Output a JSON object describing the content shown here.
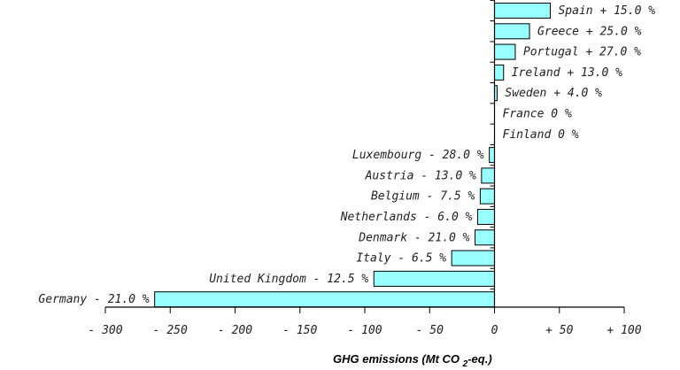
{
  "chart_data": {
    "type": "bar",
    "orientation": "horizontal",
    "xlabel": "GHG emissions (Mt CO 2-eq.)",
    "xlabel_parts": [
      "GHG emissions (Mt CO ",
      "2",
      "-eq.)"
    ],
    "xlim": [
      -300,
      100
    ],
    "x_ticks": [
      -300,
      -250,
      -200,
      -150,
      -100,
      -50,
      0,
      50,
      100
    ],
    "x_tick_labels": [
      "- 300",
      "- 250",
      "- 200",
      "- 150",
      "- 100",
      "- 50",
      "0",
      "+ 50",
      "+ 100"
    ],
    "bar_color": "#99ffff",
    "bars": [
      {
        "country": "Spain",
        "target": "+ 15.0 %",
        "value": 43
      },
      {
        "country": "Greece",
        "target": "+ 25.0 %",
        "value": 27
      },
      {
        "country": "Portugal",
        "target": "+ 27.0 %",
        "value": 16
      },
      {
        "country": "Ireland",
        "target": "+ 13.0 %",
        "value": 7
      },
      {
        "country": "Sweden",
        "target": "+ 4.0 %",
        "value": 2
      },
      {
        "country": "France",
        "target": "0 %",
        "value": 0
      },
      {
        "country": "Finland",
        "target": "0 %",
        "value": 0
      },
      {
        "country": "Luxembourg",
        "target": "- 28.0 %",
        "value": -4
      },
      {
        "country": "Austria",
        "target": "- 13.0 %",
        "value": -10
      },
      {
        "country": "Belgium",
        "target": "- 7.5 %",
        "value": -11
      },
      {
        "country": "Netherlands",
        "target": "- 6.0 %",
        "value": -13
      },
      {
        "country": "Denmark",
        "target": "- 21.0 %",
        "value": -15
      },
      {
        "country": "Italy",
        "target": "- 6.5 %",
        "value": -33
      },
      {
        "country": "United Kingdom",
        "target": "- 12.5 %",
        "value": -93
      },
      {
        "country": "Germany",
        "target": "- 21.0 %",
        "value": -262
      }
    ]
  }
}
